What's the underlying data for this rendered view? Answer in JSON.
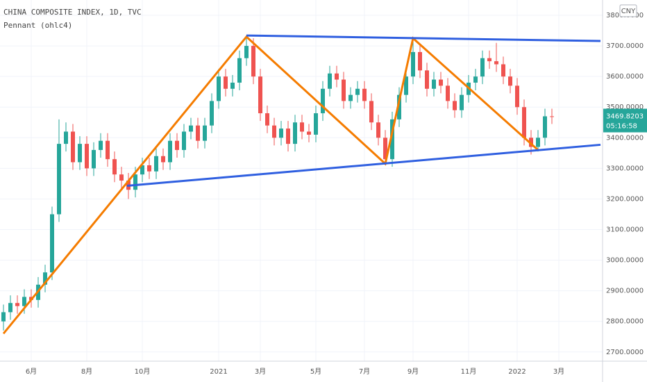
{
  "chart_data": {
    "type": "candlestick",
    "title": "CHINA COMPOSITE INDEX, 1D, TVC",
    "indicator": "Pennant (ohlc4)",
    "currency": "CNY",
    "last_price": 3469.8203,
    "countdown": "05:16:58",
    "up_color": "#26a69a",
    "down_color": "#ef5350",
    "categories": [
      null,
      null,
      null,
      null,
      "6月",
      null,
      null,
      null,
      null,
      null,
      null,
      null,
      "8月",
      null,
      null,
      null,
      null,
      null,
      null,
      null,
      "10月",
      null,
      null,
      null,
      null,
      null,
      null,
      null,
      null,
      null,
      null,
      "2021",
      null,
      null,
      null,
      null,
      null,
      "3月",
      null,
      null,
      null,
      null,
      null,
      null,
      null,
      "5月",
      null,
      null,
      null,
      null,
      null,
      null,
      "7月",
      null,
      null,
      null,
      null,
      null,
      null,
      "9月",
      null,
      null,
      null,
      null,
      null,
      null,
      null,
      "11月",
      null,
      null,
      null,
      null,
      null,
      null,
      "2022",
      null,
      null,
      null,
      null,
      null,
      "3月",
      null,
      null,
      null,
      null,
      null,
      null
    ],
    "open": [
      2800,
      2830,
      2860,
      2850,
      2880,
      2870,
      2920,
      2960,
      3150,
      3380,
      3420,
      3320,
      3380,
      3300,
      3360,
      3390,
      3330,
      3280,
      3260,
      3230,
      3280,
      3310,
      3290,
      3340,
      3320,
      3390,
      3360,
      3420,
      3440,
      3390,
      3440,
      3520,
      3600,
      3560,
      3580,
      3660,
      3700,
      3600,
      3480,
      3440,
      3400,
      3430,
      3380,
      3450,
      3420,
      3410,
      3480,
      3560,
      3610,
      3590,
      3520,
      3540,
      3560,
      3520,
      3450,
      3400,
      3330,
      3460,
      3540,
      3600,
      3680,
      3620,
      3560,
      3590,
      3570,
      3520,
      3490,
      3540,
      3580,
      3600,
      3660,
      3650,
      3640,
      3600,
      3570,
      3500,
      3400,
      3370,
      3400,
      3470,
      null,
      null,
      null,
      null,
      null,
      null,
      null
    ],
    "high": [
      2855,
      2885,
      2885,
      2905,
      2905,
      2945,
      2985,
      3175,
      3460,
      3450,
      3445,
      3405,
      3405,
      3385,
      3415,
      3415,
      3355,
      3305,
      3285,
      3305,
      3335,
      3335,
      3365,
      3365,
      3415,
      3415,
      3445,
      3465,
      3465,
      3465,
      3545,
      3625,
      3625,
      3605,
      3685,
      3735,
      3725,
      3625,
      3505,
      3465,
      3455,
      3455,
      3475,
      3475,
      3445,
      3505,
      3585,
      3635,
      3635,
      3615,
      3565,
      3585,
      3585,
      3545,
      3475,
      3425,
      3485,
      3565,
      3625,
      3725,
      3705,
      3645,
      3615,
      3615,
      3595,
      3545,
      3565,
      3605,
      3625,
      3685,
      3685,
      3710,
      3665,
      3625,
      3595,
      3525,
      3425,
      3425,
      3495,
      3495,
      null,
      null,
      null,
      null,
      null,
      null,
      null
    ],
    "low": [
      2770,
      2805,
      2825,
      2825,
      2845,
      2845,
      2895,
      2935,
      3125,
      3355,
      3295,
      3295,
      3275,
      3275,
      3335,
      3305,
      3255,
      3235,
      3200,
      3205,
      3255,
      3265,
      3265,
      3295,
      3295,
      3335,
      3335,
      3395,
      3365,
      3365,
      3415,
      3495,
      3535,
      3535,
      3555,
      3635,
      3575,
      3455,
      3415,
      3375,
      3375,
      3355,
      3355,
      3395,
      3385,
      3385,
      3455,
      3535,
      3565,
      3495,
      3495,
      3515,
      3495,
      3425,
      3375,
      3310,
      3305,
      3435,
      3515,
      3575,
      3595,
      3535,
      3535,
      3545,
      3495,
      3465,
      3465,
      3515,
      3555,
      3575,
      3625,
      3615,
      3575,
      3545,
      3475,
      3375,
      3345,
      3355,
      3375,
      3445,
      null,
      null,
      null,
      null,
      null,
      null,
      null
    ],
    "close": [
      2830,
      2860,
      2850,
      2880,
      2870,
      2920,
      2960,
      3150,
      3380,
      3420,
      3320,
      3380,
      3300,
      3360,
      3390,
      3330,
      3280,
      3260,
      3230,
      3280,
      3310,
      3290,
      3340,
      3320,
      3390,
      3360,
      3420,
      3440,
      3390,
      3440,
      3520,
      3600,
      3560,
      3580,
      3660,
      3700,
      3600,
      3480,
      3440,
      3400,
      3430,
      3380,
      3450,
      3420,
      3410,
      3480,
      3560,
      3610,
      3590,
      3520,
      3540,
      3560,
      3520,
      3450,
      3400,
      3330,
      3460,
      3540,
      3600,
      3680,
      3620,
      3560,
      3590,
      3570,
      3520,
      3490,
      3540,
      3580,
      3600,
      3660,
      3650,
      3640,
      3600,
      3570,
      3500,
      3400,
      3370,
      3400,
      3470,
      3469.8203,
      null,
      null,
      null,
      null,
      null,
      null,
      null
    ],
    "ylim": [
      2670,
      3850
    ],
    "yticks": [
      {
        "value": 2700,
        "label": "2700.0000"
      },
      {
        "value": 2800,
        "label": "2800.0000"
      },
      {
        "value": 2900,
        "label": "2900.0000"
      },
      {
        "value": 3000,
        "label": "3000.0000"
      },
      {
        "value": 3100,
        "label": "3100.0000"
      },
      {
        "value": 3200,
        "label": "3200.0000"
      },
      {
        "value": 3300,
        "label": "3300.0000"
      },
      {
        "value": 3400,
        "label": "3400.0000"
      },
      {
        "value": 3500,
        "label": "3500.0000"
      },
      {
        "value": 3600,
        "label": "3600.0000"
      },
      {
        "value": 3700,
        "label": "3700.0000"
      },
      {
        "value": 3800,
        "label": "3800.0000"
      }
    ],
    "grid": true,
    "drawings": [
      {
        "color": "#f57c00",
        "x": [
          0,
          35,
          55,
          59,
          77
        ],
        "y": [
          2760,
          3730,
          3315,
          3725,
          3360
        ]
      },
      {
        "color": "#2f5fe0",
        "x": [
          35,
          86
        ],
        "y": [
          3734,
          3716
        ]
      },
      {
        "color": "#2f5fe0",
        "x": [
          17.8,
          86
        ],
        "y": [
          3243,
          3377
        ]
      }
    ]
  }
}
